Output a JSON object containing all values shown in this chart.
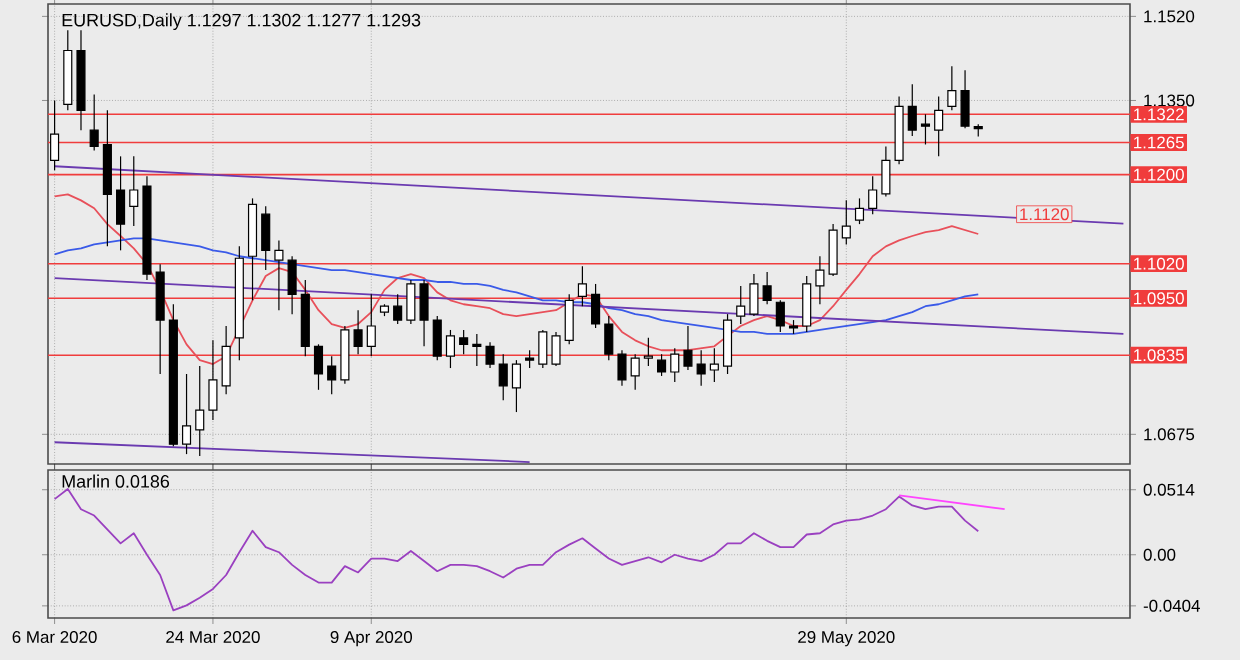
{
  "chart_data": [
    {
      "type": "candlestick",
      "title": "EURUSD,Daily 1.1297 1.1302 1.1277 1.1293",
      "categories": [
        null,
        null,
        null,
        null,
        null,
        null,
        null,
        null,
        null,
        null,
        null,
        null,
        null,
        null,
        null,
        null,
        null,
        null,
        null,
        null,
        null,
        null,
        null,
        null,
        null,
        null,
        null,
        null,
        null,
        null,
        null,
        null,
        null,
        null,
        null,
        null,
        null,
        null,
        null,
        null,
        null,
        null,
        null,
        null,
        null,
        null,
        null,
        null,
        null,
        null,
        null,
        null,
        null,
        null,
        null,
        null,
        null,
        null,
        null,
        null,
        null,
        null,
        null,
        null,
        null,
        null,
        null,
        null,
        null,
        null,
        null,
        null,
        null,
        null,
        null,
        null,
        null,
        null,
        null,
        null,
        null,
        null
      ],
      "ohlc": [
        [
          1.1229,
          1.135,
          1.1209,
          1.1282
        ],
        [
          1.1342,
          1.1492,
          1.133,
          1.1451
        ],
        [
          1.1451,
          1.1492,
          1.129,
          1.133
        ],
        [
          1.129,
          1.1362,
          1.1249,
          1.1257
        ],
        [
          1.1261,
          1.133,
          1.1055,
          1.116
        ],
        [
          1.1169,
          1.1237,
          1.1047,
          1.11
        ],
        [
          1.1136,
          1.1237,
          1.1096,
          1.1169
        ],
        [
          1.1177,
          1.1197,
          1.0987,
          1.0999
        ],
        [
          1.1003,
          1.1019,
          1.0797,
          1.0906
        ],
        [
          1.0906,
          1.0938,
          1.0651,
          1.0655
        ],
        [
          1.0655,
          1.0797,
          1.0635,
          1.0692
        ],
        [
          1.0684,
          1.0813,
          1.0631,
          1.0724
        ],
        [
          1.0724,
          1.0865,
          1.0704,
          1.0785
        ],
        [
          1.0773,
          1.0894,
          1.0756,
          1.0853
        ],
        [
          1.087,
          1.1055,
          1.0825,
          1.1031
        ],
        [
          1.1035,
          1.1152,
          1.0946,
          1.114
        ],
        [
          1.112,
          1.1136,
          1.1007,
          1.1047
        ],
        [
          1.1027,
          1.1067,
          1.0926,
          1.1047
        ],
        [
          1.1027,
          1.1035,
          1.0918,
          1.0958
        ],
        [
          1.0958,
          1.0987,
          1.0833,
          1.0853
        ],
        [
          1.0853,
          1.0857,
          1.0765,
          1.0797
        ],
        [
          1.0813,
          1.0833,
          1.0756,
          1.0785
        ],
        [
          1.0785,
          1.0894,
          1.0777,
          1.0886
        ],
        [
          1.0886,
          1.0926,
          1.0837,
          1.0853
        ],
        [
          1.0853,
          1.0958,
          1.0833,
          1.0894
        ],
        [
          1.0922,
          1.0938,
          1.0914,
          1.0934
        ],
        [
          1.0934,
          1.0958,
          1.0898,
          1.0906
        ],
        [
          1.0906,
          1.0987,
          1.0898,
          1.0979
        ],
        [
          1.0979,
          1.0987,
          1.0853,
          1.0906
        ],
        [
          1.0906,
          1.0914,
          1.0825,
          1.0833
        ],
        [
          1.0833,
          1.0886,
          1.0809,
          1.0874
        ],
        [
          1.087,
          1.0886,
          1.0837,
          1.0857
        ],
        [
          1.0857,
          1.0878,
          1.0813,
          1.0853
        ],
        [
          1.0853,
          1.0861,
          1.0809,
          1.0817
        ],
        [
          1.0817,
          1.0837,
          1.0744,
          1.0773
        ],
        [
          1.0769,
          1.0825,
          1.072,
          1.0817
        ],
        [
          1.0829,
          1.0845,
          1.0809,
          1.0825
        ],
        [
          1.0817,
          1.0886,
          1.0809,
          1.0882
        ],
        [
          1.0817,
          1.0882,
          1.0813,
          1.0874
        ],
        [
          1.0865,
          1.0958,
          1.0857,
          1.0946
        ],
        [
          1.0954,
          1.1015,
          1.0934,
          1.0979
        ],
        [
          1.0958,
          1.0979,
          1.089,
          1.0898
        ],
        [
          1.0898,
          1.0914,
          1.0825,
          1.0837
        ],
        [
          1.0837,
          1.0845,
          1.0773,
          1.0785
        ],
        [
          1.0793,
          1.0837,
          1.0765,
          1.0829
        ],
        [
          1.0829,
          1.087,
          1.0813,
          1.0833
        ],
        [
          1.0825,
          1.0837,
          1.0793,
          1.0801
        ],
        [
          1.0801,
          1.0849,
          1.0781,
          1.0837
        ],
        [
          1.0845,
          1.0894,
          1.0805,
          1.0813
        ],
        [
          1.0817,
          1.0845,
          1.0773,
          1.0797
        ],
        [
          1.0805,
          1.0849,
          1.0781,
          1.0817
        ],
        [
          1.0813,
          1.0918,
          1.0797,
          1.0906
        ],
        [
          1.0914,
          1.0975,
          1.0898,
          1.0934
        ],
        [
          1.0918,
          1.0999,
          1.0914,
          1.0979
        ],
        [
          1.0975,
          1.1003,
          1.0938,
          1.0946
        ],
        [
          1.0942,
          1.0946,
          1.0882,
          1.0894
        ],
        [
          1.0894,
          1.0906,
          1.0878,
          1.089
        ],
        [
          1.0894,
          1.0995,
          1.0882,
          1.0979
        ],
        [
          1.0975,
          1.1035,
          1.0938,
          1.1007
        ],
        [
          1.0999,
          1.11,
          1.0995,
          1.1088
        ],
        [
          1.1072,
          1.1148,
          1.1059,
          1.1096
        ],
        [
          1.1108,
          1.1152,
          1.11,
          1.1132
        ],
        [
          1.1132,
          1.1197,
          1.112,
          1.1169
        ],
        [
          1.1161,
          1.1257,
          1.1156,
          1.1229
        ],
        [
          1.1229,
          1.1358,
          1.1221,
          1.1338
        ],
        [
          1.1338,
          1.1383,
          1.1278,
          1.129
        ],
        [
          1.1302,
          1.1322,
          1.1261,
          1.1298
        ],
        [
          1.129,
          1.1358,
          1.1237,
          1.133
        ],
        [
          1.1338,
          1.1419,
          1.133,
          1.137
        ],
        [
          1.137,
          1.1411,
          1.1294,
          1.1298
        ],
        [
          1.1297,
          1.1302,
          1.1277,
          1.1293
        ],
        null,
        null,
        null,
        null,
        null,
        null,
        null,
        null,
        null,
        null,
        null
      ],
      "series": [
        {
          "type": "line",
          "color": "#e8505a",
          "values": [
            1.1156,
            1.116,
            1.1148,
            1.1132,
            1.11,
            1.1076,
            1.1051,
            1.1019,
            1.0967,
            1.0906,
            1.0857,
            1.0825,
            1.0817,
            1.0833,
            null,
            1.0946,
            1.0995,
            1.1011,
            1.1003,
            1.0967,
            1.0926,
            1.0898,
            1.089,
            1.0898,
            1.0922,
            1.0967,
            1.0991,
            1.0999,
            1.0991,
            1.0962,
            1.0946,
            1.0938,
            1.0934,
            1.093,
            1.0918,
            1.0914,
            1.0918,
            1.0922,
            1.0926,
            1.0942,
            1.0958,
            1.0954,
            1.0914,
            1.0882,
            1.0865,
            1.0853,
            1.0845,
            1.0845,
            1.0845,
            1.0849,
            1.0853,
            1.0874,
            1.0894,
            1.0906,
            1.0914,
            1.0906,
            1.0894,
            1.0894,
            1.0906,
            1.0934,
            1.0967,
            1.0999,
            1.1035,
            1.1055,
            1.1067,
            1.1076,
            1.1084,
            1.1088,
            1.1096,
            1.1088,
            1.108,
            null,
            null,
            null,
            null,
            null,
            null,
            null,
            null,
            null,
            null,
            null
          ]
        },
        {
          "type": "line",
          "color": "#3a5ae8",
          "values": [
            1.1039,
            1.1047,
            1.1051,
            1.1059,
            1.1063,
            1.1067,
            1.1071,
            1.1071,
            1.1067,
            1.1063,
            1.1059,
            1.1055,
            1.1047,
            1.1043,
            1.1035,
            1.1031,
            1.1027,
            1.1023,
            1.1019,
            1.1015,
            1.1011,
            1.1007,
            1.1007,
            1.1003,
            1.0999,
            1.0995,
            1.0991,
            1.0987,
            1.0987,
            1.0983,
            1.0983,
            1.0979,
            1.0979,
            1.0975,
            1.0967,
            1.0962,
            1.0954,
            1.0946,
            1.0946,
            1.0942,
            1.0942,
            1.0938,
            1.093,
            1.0926,
            1.0918,
            1.0914,
            1.0906,
            1.0902,
            1.0898,
            1.0894,
            1.089,
            1.0886,
            1.0882,
            1.0882,
            1.0878,
            1.0878,
            1.0878,
            1.0882,
            1.0886,
            1.089,
            1.0894,
            1.0898,
            1.0902,
            1.0906,
            1.0914,
            1.0922,
            1.0934,
            1.0938,
            1.0946,
            1.0954,
            1.0958,
            null,
            null,
            null,
            null,
            null,
            null,
            null,
            null,
            null,
            null,
            null
          ]
        },
        {
          "type": "line",
          "color": "#6a3ab0",
          "values": [
            1.1217,
            null,
            null,
            null,
            null,
            null,
            null,
            null,
            null,
            null,
            null,
            null,
            null,
            null,
            null,
            null,
            null,
            null,
            null,
            null,
            null,
            null,
            null,
            null,
            null,
            null,
            null,
            null,
            null,
            null,
            null,
            null,
            null,
            null,
            null,
            null,
            null,
            null,
            null,
            null,
            null,
            null,
            null,
            null,
            null,
            null,
            null,
            null,
            null,
            null,
            null,
            null,
            null,
            null,
            null,
            null,
            null,
            null,
            null,
            null,
            null,
            null,
            null,
            null,
            null,
            null,
            null,
            null,
            null,
            null,
            null,
            null,
            null,
            null,
            null,
            null,
            null,
            null,
            null,
            null,
            null,
            1.1101
          ]
        },
        {
          "type": "line",
          "color": "#6a3ab0",
          "values": [
            1.0991,
            null,
            null,
            null,
            null,
            null,
            null,
            null,
            null,
            null,
            null,
            null,
            null,
            null,
            null,
            null,
            null,
            null,
            null,
            null,
            null,
            null,
            null,
            null,
            null,
            null,
            null,
            null,
            null,
            null,
            null,
            null,
            null,
            null,
            null,
            null,
            null,
            null,
            null,
            null,
            null,
            null,
            null,
            null,
            null,
            null,
            null,
            null,
            null,
            null,
            null,
            null,
            null,
            null,
            null,
            null,
            null,
            null,
            null,
            null,
            null,
            null,
            null,
            null,
            null,
            null,
            null,
            null,
            null,
            null,
            null,
            null,
            null,
            null,
            null,
            null,
            null,
            null,
            null,
            null,
            null,
            1.0878
          ]
        },
        {
          "type": "line",
          "color": "#6a3ab0",
          "values": [
            1.0659,
            null,
            null,
            null,
            null,
            null,
            null,
            null,
            null,
            null,
            null,
            null,
            null,
            null,
            null,
            null,
            null,
            null,
            null,
            null,
            null,
            null,
            null,
            null,
            null,
            null,
            null,
            null,
            null,
            null,
            null,
            null,
            null,
            null,
            null,
            null,
            1.0619,
            null,
            null,
            null,
            null,
            null,
            null,
            null,
            null,
            null,
            null,
            null,
            null,
            null,
            null,
            null,
            null,
            null,
            null,
            null,
            null,
            null,
            null,
            null,
            null,
            null,
            null,
            null,
            null,
            null,
            null,
            null,
            null,
            null,
            null,
            null,
            null,
            null,
            null,
            null,
            null,
            null,
            null,
            null,
            null,
            null
          ]
        }
      ],
      "ylim": [
        1.0615,
        1.1545
      ],
      "yticks": [
        {
          "value": 1.152,
          "label": "1.1520"
        },
        {
          "value": 1.135,
          "label": "1.1350"
        },
        1.0675
      ],
      "ref_lines": [
        {
          "axis": "y",
          "value": 1.1322,
          "label": "1.1322",
          "color": "#f03c3c"
        },
        {
          "axis": "y",
          "value": 1.1265,
          "label": "1.1265",
          "color": "#f03c3c"
        },
        {
          "axis": "y",
          "value": 1.12,
          "label": "1.1200",
          "color": "#f03c3c"
        },
        {
          "axis": "y",
          "value": 1.102,
          "label": "1.1020",
          "color": "#f03c3c"
        },
        {
          "axis": "y",
          "value": 1.095,
          "label": "1.0950",
          "color": "#f03c3c"
        },
        {
          "axis": "y",
          "value": 1.0835,
          "label": "1.0835",
          "color": "#f03c3c"
        }
      ],
      "annotations": [
        {
          "text": "1.1120",
          "y": 1.112
        }
      ],
      "grid": true,
      "tick_labels": "y"
    },
    {
      "type": "line",
      "title": "Marlin 0.0186",
      "categories": [
        "6 Mar 2020",
        null,
        null,
        null,
        null,
        null,
        null,
        null,
        null,
        null,
        null,
        null,
        "24 Mar 2020",
        null,
        null,
        null,
        null,
        null,
        null,
        null,
        null,
        null,
        null,
        null,
        "9 Apr 2020",
        null,
        null,
        null,
        null,
        null,
        null,
        null,
        null,
        null,
        null,
        null,
        null,
        null,
        null,
        null,
        null,
        null,
        null,
        null,
        null,
        null,
        null,
        null,
        null,
        null,
        null,
        null,
        null,
        null,
        null,
        null,
        null,
        null,
        null,
        null,
        "29 May 2020",
        null,
        null,
        null,
        null,
        null,
        null,
        null,
        null,
        null,
        null,
        null,
        null,
        null,
        null,
        null,
        null,
        null,
        null,
        null,
        null,
        null
      ],
      "series": [
        {
          "color": "#9a40c0",
          "values": [
            0.044,
            0.052,
            0.036,
            0.031,
            0.02,
            0.009,
            0.017,
            0.0,
            -0.016,
            -0.044,
            -0.04,
            -0.034,
            -0.027,
            -0.016,
            0.002,
            0.019,
            0.006,
            0.002,
            -0.008,
            -0.016,
            -0.022,
            -0.022,
            -0.009,
            -0.014,
            -0.003,
            -0.003,
            -0.005,
            0.003,
            -0.005,
            -0.013,
            -0.008,
            -0.008,
            -0.009,
            -0.013,
            -0.018,
            -0.011,
            -0.008,
            -0.008,
            0.002,
            0.008,
            0.013,
            0.005,
            -0.003,
            -0.008,
            -0.005,
            -0.002,
            -0.006,
            0.0,
            -0.003,
            -0.005,
            0.0,
            0.009,
            0.009,
            0.017,
            0.011,
            0.006,
            0.006,
            0.016,
            0.017,
            0.024,
            0.027,
            0.028,
            0.031,
            0.036,
            0.046,
            0.039,
            0.036,
            0.038,
            0.038,
            0.027,
            0.0186,
            null,
            null,
            null,
            null,
            null,
            null,
            null,
            null,
            null,
            null,
            null
          ]
        },
        {
          "color": "#ff44ff",
          "values": [
            null,
            null,
            null,
            null,
            null,
            null,
            null,
            null,
            null,
            null,
            null,
            null,
            null,
            null,
            null,
            null,
            null,
            null,
            null,
            null,
            null,
            null,
            null,
            null,
            null,
            null,
            null,
            null,
            null,
            null,
            null,
            null,
            null,
            null,
            null,
            null,
            null,
            null,
            null,
            null,
            null,
            null,
            null,
            null,
            null,
            null,
            null,
            null,
            null,
            null,
            null,
            null,
            null,
            null,
            null,
            null,
            null,
            null,
            null,
            null,
            null,
            null,
            null,
            null,
            0.047,
            null,
            null,
            null,
            null,
            null,
            null,
            null,
            0.036,
            null,
            null,
            null,
            null,
            null,
            null,
            null,
            null,
            null
          ]
        }
      ],
      "ylim": [
        -0.05,
        0.067
      ],
      "yticks": [
        0.0514,
        {
          "value": 0,
          "label": "0.00"
        },
        -0.0404
      ],
      "grid": true
    }
  ]
}
